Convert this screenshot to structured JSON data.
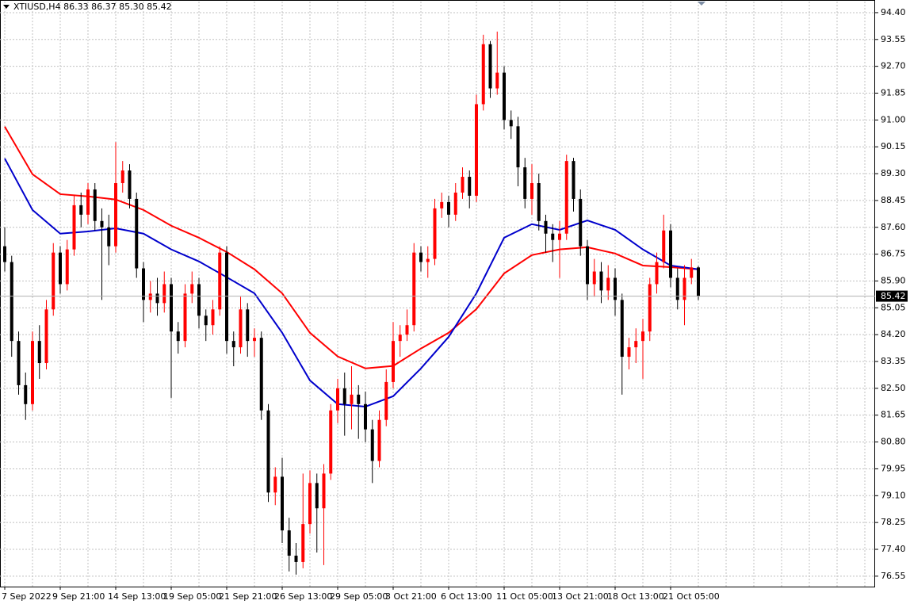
{
  "header": {
    "symbol": "XTIUSD,H4",
    "ohlc": [
      "86.33",
      "86.37",
      "85.30",
      "85.42"
    ]
  },
  "chart_data": {
    "type": "candlestick",
    "categories": [
      "7 Sep 2022",
      null,
      null,
      null,
      null,
      null,
      null,
      null,
      "9 Sep 21:00",
      null,
      null,
      null,
      null,
      null,
      null,
      null,
      "14 Sep 13:00",
      null,
      null,
      null,
      null,
      null,
      null,
      null,
      "19 Sep 05:00",
      null,
      null,
      null,
      null,
      null,
      null,
      null,
      "21 Sep 21:00",
      null,
      null,
      null,
      null,
      null,
      null,
      null,
      "26 Sep 13:00",
      null,
      null,
      null,
      null,
      null,
      null,
      null,
      "29 Sep 05:00",
      null,
      null,
      null,
      null,
      null,
      null,
      null,
      "3 Oct 21:00",
      null,
      null,
      null,
      null,
      null,
      null,
      null,
      "6 Oct 13:00",
      null,
      null,
      null,
      null,
      null,
      null,
      null,
      "11 Oct 05:00",
      null,
      null,
      null,
      null,
      null,
      null,
      null,
      "13 Oct 21:00",
      null,
      null,
      null,
      null,
      null,
      null,
      null,
      "18 Oct 13:00",
      null,
      null,
      null,
      null,
      null,
      null,
      null,
      "21 Oct 05:00",
      null,
      null,
      null,
      null
    ],
    "open": [
      87.0,
      86.5,
      84.0,
      82.6,
      82.0,
      84.0,
      83.3,
      85.0,
      86.8,
      85.8,
      86.9,
      88.3,
      88.0,
      88.8,
      87.8,
      87.6,
      87.0,
      89.0,
      89.4,
      88.5,
      86.3,
      85.3,
      85.5,
      85.2,
      85.8,
      84.3,
      84.0,
      85.5,
      85.8,
      84.8,
      84.5,
      85.0,
      86.8,
      84.0,
      83.8,
      85.0,
      84.0,
      84.1,
      81.8,
      79.2,
      79.7,
      78.0,
      77.2,
      77.0,
      78.2,
      79.5,
      78.7,
      79.8,
      81.8,
      82.5,
      82.0,
      82.3,
      82.0,
      81.2,
      80.2,
      81.5,
      82.7,
      84.0,
      84.2,
      84.5,
      86.8,
      86.5,
      86.6,
      88.2,
      88.4,
      88.0,
      88.7,
      89.2,
      88.6,
      91.5,
      93.4,
      92.0,
      92.5,
      91.0,
      90.8,
      89.5,
      88.5,
      89.0,
      87.8,
      87.4,
      87.2,
      87.4,
      89.7,
      88.5,
      87.0,
      85.8,
      86.2,
      85.6,
      86.0,
      85.3,
      83.5,
      83.8,
      84.0,
      84.3,
      85.8,
      86.5,
      87.5,
      86.0,
      85.3,
      86.0,
      86.33
    ],
    "high": [
      87.6,
      86.7,
      84.3,
      83.0,
      84.3,
      84.5,
      85.3,
      87.1,
      87.0,
      87.2,
      88.6,
      88.7,
      89.0,
      89.0,
      88.2,
      88.0,
      90.3,
      89.7,
      89.6,
      88.7,
      86.5,
      85.9,
      86.0,
      86.2,
      86.0,
      84.6,
      85.8,
      86.2,
      86.0,
      85.0,
      85.3,
      87.0,
      87.0,
      84.3,
      85.4,
      85.2,
      84.4,
      84.3,
      82.0,
      80.0,
      80.3,
      78.4,
      77.6,
      79.8,
      79.9,
      79.8,
      80.1,
      82.0,
      82.8,
      83.0,
      83.2,
      82.6,
      82.4,
      81.5,
      81.8,
      83.1,
      84.6,
      84.5,
      85.0,
      87.1,
      87.0,
      87.0,
      88.5,
      88.7,
      88.6,
      89.0,
      89.5,
      89.4,
      91.8,
      93.7,
      93.5,
      93.8,
      92.7,
      91.3,
      91.1,
      89.8,
      89.6,
      89.3,
      88.0,
      87.7,
      87.8,
      89.9,
      89.8,
      88.8,
      87.2,
      86.6,
      86.5,
      86.4,
      86.3,
      85.5,
      84.1,
      84.4,
      84.7,
      86.0,
      86.8,
      88.0,
      87.7,
      86.3,
      86.4,
      86.6,
      86.37
    ],
    "low": [
      86.2,
      83.5,
      82.3,
      81.5,
      81.8,
      82.8,
      83.1,
      84.8,
      85.5,
      85.6,
      86.7,
      87.6,
      87.7,
      87.5,
      85.3,
      86.4,
      86.8,
      88.7,
      88.2,
      86.0,
      84.6,
      84.9,
      84.8,
      84.9,
      82.2,
      83.6,
      83.8,
      85.2,
      84.4,
      84.0,
      84.2,
      84.8,
      83.6,
      83.2,
      83.6,
      83.5,
      83.5,
      81.5,
      78.9,
      78.8,
      77.6,
      76.7,
      76.6,
      76.8,
      77.9,
      77.3,
      76.9,
      79.6,
      81.4,
      81.0,
      81.2,
      80.9,
      80.8,
      79.5,
      80.0,
      81.3,
      82.5,
      83.5,
      84.0,
      84.3,
      86.2,
      86.0,
      86.4,
      87.9,
      87.6,
      87.8,
      88.5,
      88.2,
      88.4,
      91.3,
      91.7,
      91.8,
      90.7,
      90.4,
      88.9,
      88.2,
      88.0,
      87.5,
      86.8,
      86.5,
      86.0,
      87.2,
      88.1,
      86.7,
      85.3,
      85.4,
      85.2,
      85.3,
      84.8,
      82.3,
      83.1,
      83.3,
      82.8,
      84.0,
      85.5,
      86.3,
      85.7,
      85.0,
      84.5,
      85.8,
      85.3
    ],
    "close": [
      86.5,
      84.0,
      82.6,
      82.0,
      84.0,
      83.3,
      85.0,
      86.8,
      85.8,
      86.9,
      88.3,
      88.0,
      88.8,
      87.8,
      87.6,
      87.0,
      89.0,
      89.4,
      88.5,
      86.3,
      85.3,
      85.5,
      85.2,
      85.8,
      84.3,
      84.0,
      85.5,
      85.8,
      84.8,
      84.5,
      85.0,
      86.8,
      84.0,
      83.8,
      85.0,
      84.0,
      84.1,
      81.8,
      79.2,
      79.7,
      78.0,
      77.2,
      77.0,
      78.2,
      79.5,
      78.7,
      79.8,
      81.8,
      82.5,
      82.0,
      82.3,
      82.0,
      81.2,
      80.2,
      81.5,
      82.7,
      84.0,
      84.2,
      84.5,
      86.8,
      86.5,
      86.6,
      88.2,
      88.4,
      88.0,
      88.7,
      89.2,
      88.6,
      91.5,
      93.4,
      92.0,
      92.5,
      91.0,
      90.8,
      89.5,
      88.5,
      89.0,
      87.8,
      87.4,
      87.2,
      87.4,
      89.7,
      88.5,
      87.0,
      85.8,
      86.2,
      85.6,
      86.0,
      85.3,
      83.5,
      83.8,
      84.0,
      84.3,
      85.8,
      86.5,
      87.5,
      86.0,
      85.3,
      86.0,
      86.33,
      85.42
    ],
    "up_color": "#ff0000",
    "down_color": "#000000",
    "series": [
      {
        "color": "#ff0000",
        "x": [
          0,
          4,
          8,
          12,
          16,
          20,
          24,
          28,
          32,
          36,
          40,
          44,
          48,
          52,
          56,
          60,
          64,
          68,
          72,
          76,
          80,
          84,
          88,
          92,
          96,
          100
        ],
        "values": [
          90.79,
          89.28,
          88.65,
          88.58,
          88.48,
          88.15,
          87.65,
          87.27,
          86.82,
          86.27,
          85.51,
          84.26,
          83.51,
          83.13,
          83.21,
          83.76,
          84.26,
          85.01,
          86.14,
          86.72,
          86.9,
          86.97,
          86.77,
          86.39,
          86.34,
          86.27
        ]
      },
      {
        "color": "#0000cc",
        "x": [
          0,
          4,
          8,
          12,
          16,
          20,
          24,
          28,
          32,
          36,
          40,
          44,
          48,
          52,
          56,
          60,
          64,
          68,
          72,
          76,
          80,
          84,
          88,
          92,
          96,
          100
        ],
        "values": [
          89.78,
          88.15,
          87.4,
          87.47,
          87.57,
          87.4,
          86.9,
          86.52,
          86.02,
          85.51,
          84.26,
          82.75,
          82.0,
          81.92,
          82.25,
          83.13,
          84.13,
          85.51,
          87.27,
          87.7,
          87.52,
          87.82,
          87.52,
          86.9,
          86.39,
          86.27
        ]
      }
    ],
    "ylim": [
      76.22,
      94.75
    ],
    "yticks": [
      76.55,
      {
        "value": 77.4,
        "label": "77.40"
      },
      78.25,
      {
        "value": 79.1,
        "label": "79.10"
      },
      79.95,
      {
        "value": 80.8,
        "label": "80.80"
      },
      81.65,
      {
        "value": 82.5,
        "label": "82.50"
      },
      83.35,
      {
        "value": 84.2,
        "label": "84.20"
      },
      85.05,
      {
        "value": 85.9,
        "label": "85.90"
      },
      86.75,
      {
        "value": 87.6,
        "label": "87.60"
      },
      88.45,
      {
        "value": 89.3,
        "label": "89.30"
      },
      90.15,
      {
        "value": 91.0,
        "label": "91.00"
      },
      91.85,
      {
        "value": 92.7,
        "label": "92.70"
      },
      93.55,
      {
        "value": 94.4,
        "label": "94.40"
      }
    ],
    "grid": true,
    "last_price": {
      "value": 85.42,
      "label": "85.42"
    }
  }
}
